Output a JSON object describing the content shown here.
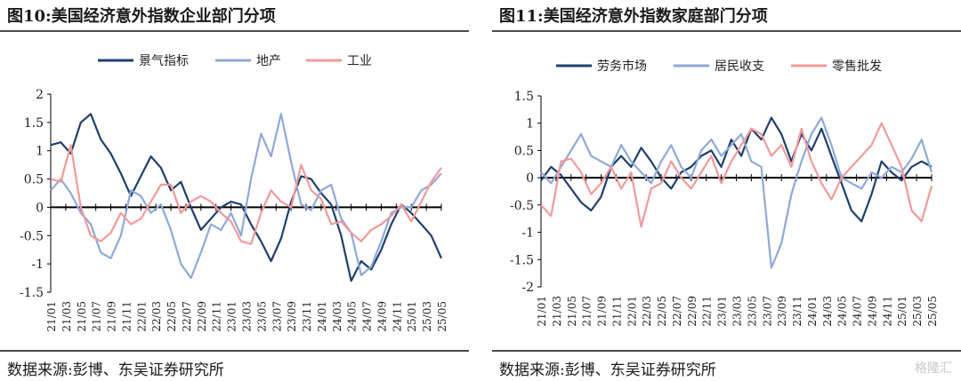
{
  "watermark": "格隆汇",
  "colors": {
    "dark": "#1f3f6e",
    "light": "#8fa9d9",
    "pink": "#f29a9a",
    "axis": "#000000"
  },
  "panels": [
    {
      "title": "图10:美国经济意外指数企业部门分项",
      "source": "数据来源:彭博、东吴证券研究所",
      "chart_data": {
        "type": "line",
        "ylim": [
          -1.5,
          2
        ],
        "yticks": [
          2,
          1.5,
          1,
          0.5,
          0,
          -0.5,
          -1,
          -1.5
        ],
        "ytick_labels": [
          "2",
          "1.5",
          "1",
          "0.5",
          "0",
          "-0.5",
          "-1",
          "-1.5"
        ],
        "xticks": [
          "21/01",
          "21/03",
          "21/05",
          "21/07",
          "21/09",
          "21/11",
          "22/01",
          "22/03",
          "22/05",
          "22/07",
          "22/09",
          "22/11",
          "23/01",
          "23/03",
          "23/05",
          "23/07",
          "23/09",
          "23/11",
          "24/01",
          "24/03",
          "24/05",
          "24/07",
          "24/09",
          "24/11",
          "25/01",
          "25/03",
          "25/05"
        ],
        "legend": "top-center",
        "series": [
          {
            "name": "景气指标",
            "color": "#1f3f6e",
            "values": [
              1.1,
              1.15,
              0.95,
              1.5,
              1.65,
              1.2,
              0.95,
              0.6,
              0.2,
              0.55,
              0.9,
              0.7,
              0.3,
              0.45,
              0.0,
              -0.4,
              -0.2,
              0.0,
              0.1,
              0.05,
              -0.3,
              -0.6,
              -0.95,
              -0.55,
              0.1,
              0.55,
              0.5,
              0.25,
              0.05,
              -0.5,
              -1.3,
              -0.95,
              -1.1,
              -0.75,
              -0.3,
              0.05,
              -0.1,
              -0.3,
              -0.5,
              -0.9
            ]
          },
          {
            "name": "地产",
            "color": "#8fa9d9",
            "values": [
              0.3,
              0.5,
              0.25,
              -0.1,
              -0.3,
              -0.8,
              -0.9,
              -0.5,
              0.3,
              0.2,
              -0.1,
              0.05,
              -0.4,
              -1.0,
              -1.25,
              -0.8,
              -0.3,
              -0.4,
              -0.1,
              -0.5,
              0.5,
              1.3,
              0.9,
              1.65,
              0.8,
              0.05,
              -0.05,
              0.3,
              0.4,
              -0.2,
              -0.45,
              -1.2,
              -1.05,
              -0.6,
              -0.1,
              0.0,
              0.0,
              0.3,
              0.4,
              0.6
            ]
          },
          {
            "name": "工业",
            "color": "#f29a9a",
            "values": [
              0.5,
              0.45,
              1.1,
              0.0,
              -0.5,
              -0.6,
              -0.45,
              -0.1,
              -0.3,
              -0.2,
              0.1,
              0.4,
              0.4,
              -0.1,
              0.1,
              0.2,
              0.1,
              -0.1,
              -0.25,
              -0.6,
              -0.65,
              -0.1,
              0.3,
              0.1,
              0.0,
              0.75,
              0.3,
              0.15,
              -0.3,
              -0.25,
              -0.45,
              -0.6,
              -0.4,
              -0.3,
              -0.15,
              0.05,
              -0.25,
              0.1,
              0.45,
              0.7
            ]
          }
        ]
      }
    },
    {
      "title": "图11:美国经济意外指数家庭部门分项",
      "source": "数据来源:彭博、东吴证券研究所",
      "chart_data": {
        "type": "line",
        "ylim": [
          -2,
          1.5
        ],
        "yticks": [
          1.5,
          1,
          0.5,
          0,
          -0.5,
          -1,
          -1.5,
          -2
        ],
        "ytick_labels": [
          "1.5",
          "1",
          "0.5",
          "0",
          "-0.5",
          "-1",
          "-1.5",
          "-2"
        ],
        "xticks": [
          "21/01",
          "21/03",
          "21/05",
          "21/07",
          "21/09",
          "21/11",
          "22/01",
          "22/03",
          "22/05",
          "22/07",
          "22/09",
          "22/11",
          "23/01",
          "23/03",
          "23/05",
          "23/07",
          "23/09",
          "23/11",
          "24/01",
          "24/03",
          "24/05",
          "24/07",
          "24/09",
          "24/11",
          "25/01",
          "25/03",
          "25/05"
        ],
        "legend": "top-center",
        "series": [
          {
            "name": "劳务市场",
            "color": "#1f3f6e",
            "values": [
              -0.05,
              0.2,
              0.05,
              -0.2,
              -0.45,
              -0.6,
              -0.35,
              0.2,
              0.4,
              0.2,
              0.55,
              0.3,
              0.0,
              -0.2,
              0.1,
              0.2,
              0.4,
              0.5,
              0.2,
              0.7,
              0.4,
              0.9,
              0.7,
              1.1,
              0.8,
              0.3,
              0.8,
              0.5,
              0.9,
              0.4,
              -0.1,
              -0.6,
              -0.8,
              -0.3,
              0.3,
              0.1,
              -0.05,
              0.2,
              0.3,
              0.2
            ]
          },
          {
            "name": "居民收支",
            "color": "#8fa9d9",
            "values": [
              0.1,
              -0.1,
              0.2,
              0.5,
              0.8,
              0.4,
              0.3,
              0.2,
              0.6,
              0.3,
              0.1,
              -0.1,
              0.3,
              0.6,
              0.2,
              0.0,
              0.5,
              0.7,
              0.4,
              0.6,
              0.8,
              0.3,
              0.2,
              -1.65,
              -1.2,
              -0.3,
              0.3,
              0.8,
              1.1,
              0.6,
              0.0,
              -0.1,
              -0.2,
              0.1,
              0.0,
              0.2,
              0.1,
              0.35,
              0.7,
              0.1
            ]
          },
          {
            "name": "零售批发",
            "color": "#f29a9a",
            "values": [
              -0.5,
              -0.7,
              0.3,
              0.35,
              0.1,
              -0.3,
              -0.1,
              0.2,
              -0.2,
              0.1,
              -0.9,
              -0.2,
              -0.1,
              0.3,
              0.0,
              -0.2,
              0.1,
              0.4,
              -0.1,
              0.3,
              0.6,
              0.9,
              0.8,
              0.4,
              0.6,
              0.2,
              0.9,
              0.3,
              -0.1,
              -0.4,
              0.0,
              0.2,
              0.4,
              0.6,
              1.0,
              0.6,
              0.2,
              -0.6,
              -0.8,
              -0.15
            ]
          }
        ]
      }
    }
  ]
}
